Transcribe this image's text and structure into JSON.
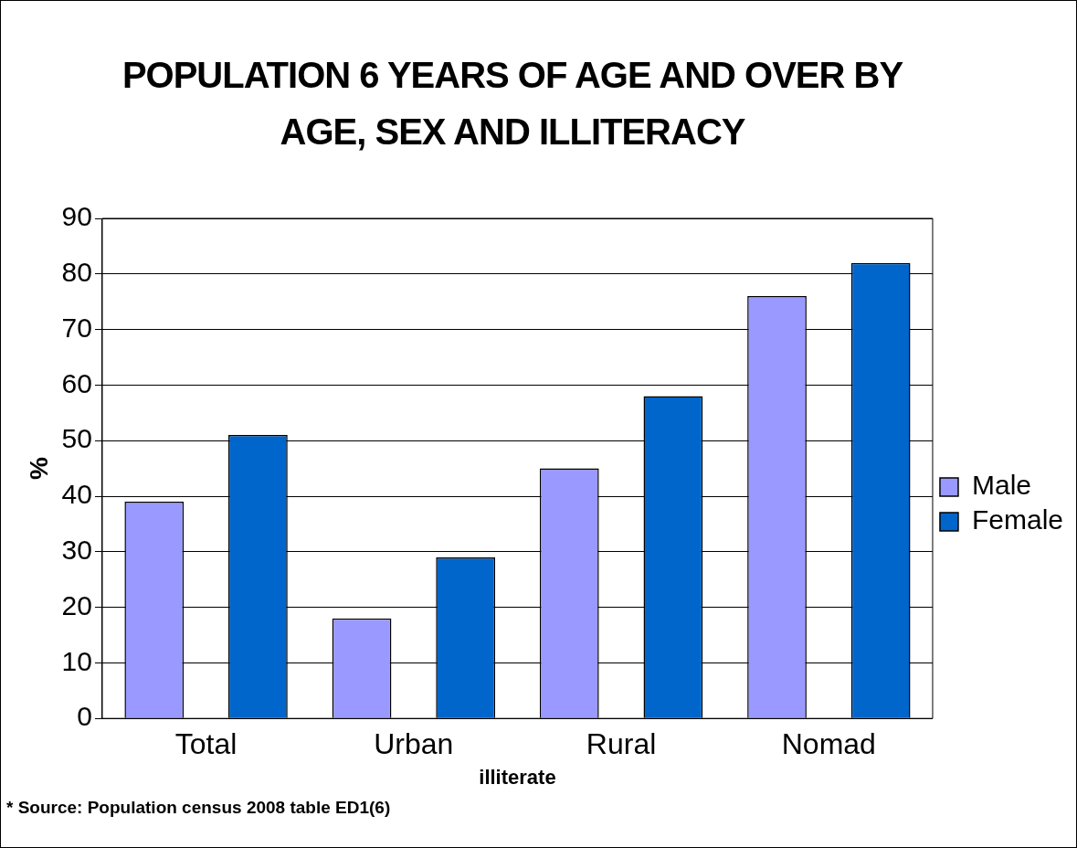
{
  "chart_data": {
    "type": "bar",
    "title": "POPULATION 6 YEARS OF AGE AND OVER BY AGE, SEX AND ILLITERACY",
    "xlabel": "illiterate",
    "ylabel": "%",
    "categories": [
      "Total",
      "Urban",
      "Rural",
      "Nomad"
    ],
    "series": [
      {
        "name": "Male",
        "color": "#9999ff",
        "values": [
          39,
          18,
          45,
          76
        ]
      },
      {
        "name": "Female",
        "color": "#0066cc",
        "values": [
          51,
          29,
          58,
          82
        ]
      }
    ],
    "ylim": [
      0,
      90
    ],
    "yticks": [
      0,
      10,
      20,
      30,
      40,
      50,
      60,
      70,
      80,
      90
    ],
    "grid": "y",
    "legend": "right",
    "annotations": [
      "* Source: Population census 2008 table ED1(6)"
    ]
  }
}
